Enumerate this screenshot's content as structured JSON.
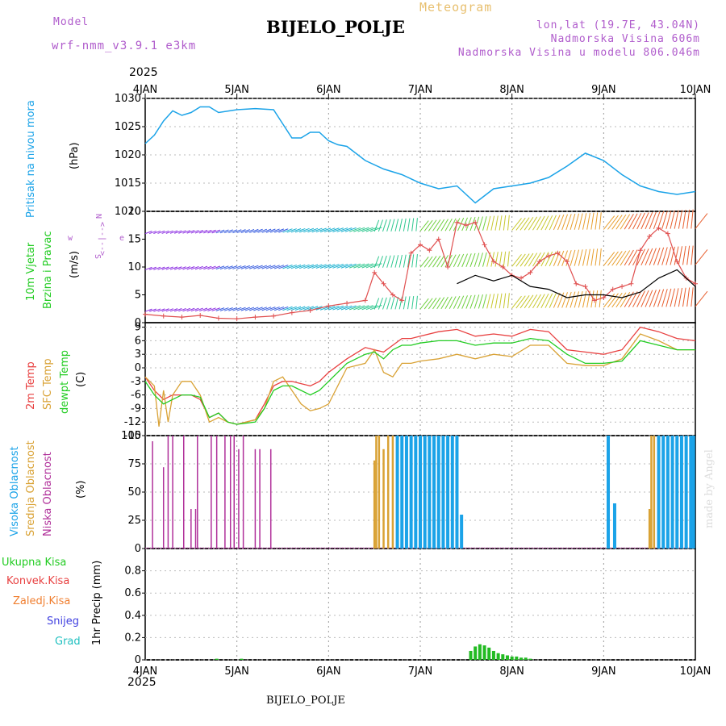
{
  "header": {
    "model_label": "Model",
    "model_name": "wrf-nmm_v3.9.1 e3km",
    "product": "Meteogram",
    "station": "BIJELO_POLJE",
    "lonlat": "lon,lat (19.7E, 43.04N)",
    "altitude": "Nadmorska Visina 606m",
    "model_altitude": "Nadmorska Visina u modelu 806.046m",
    "year_top": "2025",
    "year_bottom": "2025",
    "footer_station": "BIJELO_POLJE",
    "credit": "made by Angel"
  },
  "colors": {
    "pressure": "#1ba3e8",
    "temp2m": "#e84040",
    "sfc": "#d9a235",
    "dewpt": "#22cc22",
    "high": "#1ba3e8",
    "mid": "#d9a235",
    "low": "#b0309a",
    "precip": "#22bb22",
    "purple_text": "#b05ccc",
    "wind_speed": "#e05050",
    "wind_black": "#000000"
  },
  "chart_data": [
    {
      "type": "line",
      "panel": "pressure",
      "title": "Pritisak na nivou mora",
      "ylabel": "(hPa)",
      "ylim": [
        1010,
        1030
      ],
      "yticks": [
        "1030",
        "1025",
        "1020",
        "1015",
        "1010"
      ],
      "x_start": "4JAN 2025",
      "x_days": [
        "4JAN",
        "5JAN",
        "6JAN",
        "7JAN",
        "8JAN",
        "9JAN",
        "10JAN"
      ],
      "series": [
        {
          "name": "Pritisak",
          "x": [
            0,
            0.1,
            0.2,
            0.3,
            0.4,
            0.5,
            0.6,
            0.7,
            0.8,
            1.0,
            1.2,
            1.4,
            1.5,
            1.6,
            1.7,
            1.8,
            1.9,
            2.0,
            2.1,
            2.2,
            2.4,
            2.6,
            2.8,
            3.0,
            3.2,
            3.4,
            3.6,
            3.8,
            4.0,
            4.2,
            4.4,
            4.6,
            4.8,
            5.0,
            5.2,
            5.4,
            5.6,
            5.8,
            6.0
          ],
          "values": [
            1022,
            1023.5,
            1026,
            1027.8,
            1027,
            1027.5,
            1028.5,
            1028.5,
            1027.5,
            1028,
            1028.2,
            1028,
            1025.5,
            1023,
            1023,
            1024,
            1024,
            1022.5,
            1021.8,
            1021.5,
            1019,
            1017.5,
            1016.5,
            1015,
            1014,
            1014.5,
            1011.5,
            1014,
            1014.5,
            1015,
            1016,
            1018,
            1020.3,
            1019,
            1016.5,
            1014.5,
            1013.5,
            1013,
            1013.5
          ]
        }
      ]
    },
    {
      "type": "line",
      "panel": "wind",
      "title": "10m Vjetar",
      "subtitle": "Brzina i Pravac",
      "ylabel": "(m/s)",
      "ylim": [
        0,
        20
      ],
      "yticks": [
        "20",
        "15",
        "10",
        "5",
        "0"
      ],
      "compass": [
        "N",
        "S",
        "E",
        "W"
      ],
      "compass_axis": [
        "w",
        "<--|-->",
        "e"
      ],
      "series": [
        {
          "name": "Brzina vjetra",
          "x": [
            0,
            0.2,
            0.4,
            0.6,
            0.8,
            1.0,
            1.2,
            1.4,
            1.6,
            1.8,
            2.0,
            2.2,
            2.4,
            2.5,
            2.6,
            2.7,
            2.8,
            2.9,
            3.0,
            3.1,
            3.2,
            3.3,
            3.4,
            3.5,
            3.6,
            3.7,
            3.8,
            3.9,
            4.0,
            4.1,
            4.2,
            4.3,
            4.4,
            4.5,
            4.6,
            4.7,
            4.8,
            4.9,
            5.0,
            5.1,
            5.2,
            5.3,
            5.4,
            5.5,
            5.6,
            5.7,
            5.8,
            5.9,
            6.0
          ],
          "values": [
            1.5,
            1.2,
            1.0,
            1.3,
            0.8,
            0.7,
            1.0,
            1.2,
            1.8,
            2.2,
            3.0,
            3.5,
            4.0,
            9.0,
            7.0,
            5.0,
            4.0,
            12.5,
            14.0,
            13.0,
            15.0,
            10.0,
            18.0,
            17.5,
            18.0,
            14.0,
            11.0,
            10.0,
            8.5,
            8.0,
            9.0,
            11.0,
            12.0,
            12.5,
            11.0,
            7.0,
            6.5,
            4.0,
            4.5,
            6.0,
            6.5,
            7.0,
            13.0,
            15.5,
            17.0,
            16.0,
            11.0,
            8.0,
            7.0
          ]
        },
        {
          "name": "Srednja brzina",
          "x": [
            3.4,
            3.6,
            3.8,
            4.0,
            4.2,
            4.4,
            4.6,
            4.8,
            5.0,
            5.2,
            5.4,
            5.6,
            5.8,
            6.0
          ],
          "values": [
            7.0,
            8.5,
            7.5,
            8.5,
            6.5,
            6.0,
            4.5,
            5.0,
            5.0,
            4.5,
            5.5,
            8.0,
            9.5,
            6.5
          ]
        }
      ]
    },
    {
      "type": "line",
      "panel": "temperature",
      "titles": [
        "2m Temp",
        "SFC Temp",
        "dewpt Temp"
      ],
      "ylabel": "(C)",
      "ylim": [
        -15,
        10
      ],
      "yticks": [
        "9",
        "6",
        "3",
        "0",
        "-3",
        "-6",
        "-9",
        "-12",
        "-15"
      ],
      "series": [
        {
          "name": "2m Temp",
          "x": [
            0,
            0.1,
            0.2,
            0.3,
            0.4,
            0.5,
            0.6,
            0.7,
            0.8,
            0.9,
            1.0,
            1.2,
            1.3,
            1.4,
            1.5,
            1.6,
            1.7,
            1.8,
            1.9,
            2.0,
            2.2,
            2.4,
            2.5,
            2.6,
            2.7,
            2.8,
            2.9,
            3.0,
            3.2,
            3.4,
            3.6,
            3.8,
            4.0,
            4.2,
            4.4,
            4.6,
            4.8,
            5.0,
            5.2,
            5.4,
            5.6,
            5.8,
            6.0
          ],
          "values": [
            -2,
            -5,
            -7,
            -6,
            -6,
            -6,
            -7,
            -11,
            -10,
            -12,
            -12.5,
            -11.5,
            -8,
            -4,
            -3,
            -3,
            -3.5,
            -4,
            -3,
            -1,
            2,
            4.5,
            4,
            3.5,
            5,
            6.5,
            6.5,
            7,
            8,
            8.5,
            7,
            7.5,
            7,
            8.5,
            8,
            4,
            3.5,
            3,
            4,
            9,
            8,
            6.5,
            6
          ]
        },
        {
          "name": "SFC Temp",
          "x": [
            0,
            0.1,
            0.15,
            0.2,
            0.25,
            0.3,
            0.4,
            0.5,
            0.6,
            0.7,
            0.8,
            0.9,
            1.0,
            1.2,
            1.3,
            1.4,
            1.5,
            1.6,
            1.7,
            1.8,
            1.9,
            2.0,
            2.2,
            2.4,
            2.5,
            2.6,
            2.7,
            2.8,
            2.9,
            3.0,
            3.2,
            3.4,
            3.6,
            3.8,
            4.0,
            4.2,
            4.4,
            4.6,
            4.8,
            5.0,
            5.2,
            5.4,
            5.6,
            5.8,
            6.0
          ],
          "values": [
            -2,
            -4,
            -13,
            -5,
            -12,
            -6,
            -3,
            -3,
            -6,
            -12,
            -11,
            -12,
            -12.5,
            -11.5,
            -9,
            -3,
            -2,
            -5,
            -8,
            -9.5,
            -9,
            -8,
            0,
            1,
            4,
            -1,
            -2,
            1,
            1,
            1.5,
            2,
            3,
            2,
            3,
            2.5,
            5,
            5,
            1,
            0.5,
            0.5,
            2,
            7.5,
            6,
            4,
            4
          ]
        },
        {
          "name": "dewpt Temp",
          "x": [
            0,
            0.1,
            0.2,
            0.3,
            0.4,
            0.5,
            0.6,
            0.7,
            0.8,
            0.9,
            1.0,
            1.2,
            1.3,
            1.4,
            1.5,
            1.6,
            1.7,
            1.8,
            1.9,
            2.0,
            2.2,
            2.4,
            2.5,
            2.6,
            2.7,
            2.8,
            2.9,
            3.0,
            3.2,
            3.4,
            3.6,
            3.8,
            4.0,
            4.2,
            4.4,
            4.6,
            4.8,
            5.0,
            5.2,
            5.4,
            5.6,
            5.8,
            6.0
          ],
          "values": [
            -3,
            -6,
            -8,
            -7,
            -6,
            -6,
            -6.5,
            -11,
            -10,
            -12,
            -12.5,
            -12,
            -9,
            -5,
            -4,
            -4,
            -5,
            -6,
            -5,
            -3,
            1,
            3,
            3.5,
            2,
            4,
            5,
            5,
            5.5,
            6,
            6,
            5,
            5.5,
            5.5,
            6.5,
            6,
            3,
            1,
            1,
            1.5,
            6,
            5,
            4,
            4
          ]
        }
      ]
    },
    {
      "type": "bar",
      "panel": "cloud",
      "titles": [
        "Visoka Oblacnost",
        "Srednja Oblacnost",
        "Niska Oblacnost"
      ],
      "ylabel": "(%)",
      "ylim": [
        0,
        100
      ],
      "yticks": [
        "100",
        "75",
        "50",
        "25",
        "0"
      ],
      "series": [
        {
          "name": "Niska Oblacnost",
          "x": [
            0.08,
            0.2,
            0.25,
            0.3,
            0.42,
            0.5,
            0.55,
            0.57,
            0.72,
            0.78,
            0.87,
            0.93,
            0.97,
            1.02,
            1.07,
            1.2,
            1.25,
            1.37
          ],
          "values": [
            95,
            72,
            100,
            100,
            100,
            35,
            35,
            100,
            100,
            100,
            100,
            100,
            100,
            88,
            100,
            88,
            88,
            88
          ]
        },
        {
          "name": "Srednja Oblacnost",
          "x": [
            2.5,
            2.52,
            2.55,
            2.6,
            2.65,
            2.7,
            2.75,
            2.8,
            2.9,
            3.0,
            3.1,
            3.2,
            3.3,
            3.35,
            5.5,
            5.52,
            5.55,
            5.6,
            5.65,
            5.7,
            5.75,
            5.8,
            5.85,
            5.9,
            5.95
          ],
          "values": [
            78,
            100,
            100,
            88,
            100,
            100,
            100,
            100,
            100,
            100,
            100,
            100,
            100,
            50,
            35,
            100,
            100,
            100,
            100,
            100,
            100,
            100,
            100,
            100,
            100
          ]
        },
        {
          "name": "Visoka Oblacnost",
          "x": [
            2.75,
            2.8,
            2.85,
            2.9,
            2.95,
            3.0,
            3.05,
            3.1,
            3.15,
            3.2,
            3.25,
            3.3,
            3.35,
            3.4,
            3.45,
            5.05,
            5.12,
            5.6,
            5.65,
            5.7,
            5.75,
            5.8,
            5.85,
            5.9,
            5.95,
            5.98
          ],
          "values": [
            100,
            100,
            100,
            100,
            100,
            100,
            100,
            100,
            100,
            100,
            100,
            100,
            100,
            100,
            30,
            100,
            40,
            100,
            100,
            100,
            100,
            100,
            100,
            100,
            100,
            100
          ]
        }
      ]
    },
    {
      "type": "bar",
      "panel": "precip",
      "title": "1hr Precip (mm)",
      "legend": [
        "Ukupna Kisa",
        "Konvek.Kisa",
        "Zaledj.Kisa",
        "Snijeg",
        "Grad"
      ],
      "ylim": [
        0,
        1.0
      ],
      "yticks": [
        "0.8",
        "0.6",
        "0.4",
        "0.2",
        "0"
      ],
      "series": [
        {
          "name": "Ukupna Kisa",
          "x": [
            0.78,
            1.05,
            3.55,
            3.6,
            3.65,
            3.7,
            3.75,
            3.8,
            3.85,
            3.9,
            3.95,
            4.0,
            4.05,
            4.1,
            4.15,
            4.2
          ],
          "values": [
            0.01,
            0.01,
            0.08,
            0.12,
            0.14,
            0.13,
            0.11,
            0.08,
            0.06,
            0.05,
            0.04,
            0.03,
            0.03,
            0.02,
            0.02,
            0.01
          ]
        }
      ]
    }
  ]
}
